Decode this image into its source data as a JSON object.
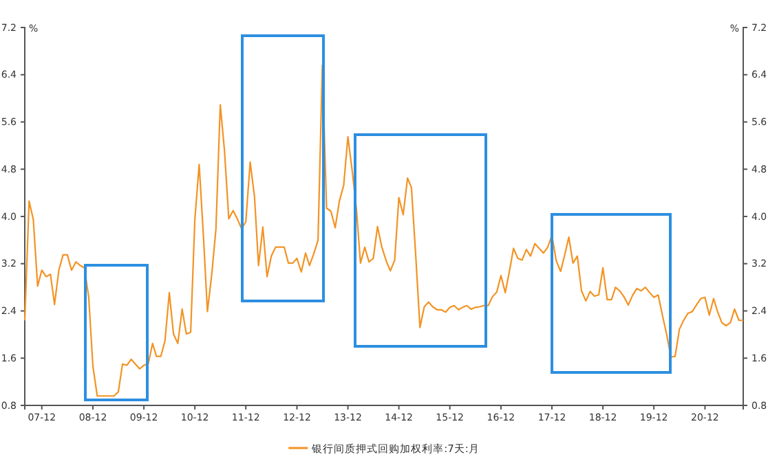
{
  "chart_data": {
    "type": "line",
    "ylabel": "%",
    "y2label": "%",
    "x": [
      "2007-08",
      "2007-09",
      "2007-10",
      "2007-11",
      "2007-12",
      "2008-01",
      "2008-02",
      "2008-03",
      "2008-04",
      "2008-05",
      "2008-06",
      "2008-07",
      "2008-08",
      "2008-09",
      "2008-10",
      "2008-11",
      "2008-12",
      "2009-01",
      "2009-02",
      "2009-03",
      "2009-04",
      "2009-05",
      "2009-06",
      "2009-07",
      "2009-08",
      "2009-09",
      "2009-10",
      "2009-11",
      "2009-12",
      "2010-01",
      "2010-02",
      "2010-03",
      "2010-04",
      "2010-05",
      "2010-06",
      "2010-07",
      "2010-08",
      "2010-09",
      "2010-10",
      "2010-11",
      "2010-12",
      "2011-01",
      "2011-02",
      "2011-03",
      "2011-04",
      "2011-05",
      "2011-06",
      "2011-07",
      "2011-08",
      "2011-09",
      "2011-10",
      "2011-11",
      "2011-12",
      "2012-01",
      "2012-02",
      "2012-03",
      "2012-04",
      "2012-05",
      "2012-06",
      "2012-07",
      "2012-08",
      "2012-09",
      "2012-10",
      "2012-11",
      "2012-12",
      "2013-01",
      "2013-02",
      "2013-03",
      "2013-04",
      "2013-05",
      "2013-06",
      "2013-07",
      "2013-08",
      "2013-09",
      "2013-10",
      "2013-11",
      "2013-12",
      "2014-01",
      "2014-02",
      "2014-03",
      "2014-04",
      "2014-05",
      "2014-06",
      "2014-07",
      "2014-08",
      "2014-09",
      "2014-10",
      "2014-11",
      "2014-12",
      "2015-01",
      "2015-02",
      "2015-03",
      "2015-04",
      "2015-05",
      "2015-06",
      "2015-07",
      "2015-08",
      "2015-09",
      "2015-10",
      "2015-11",
      "2015-12",
      "2016-01",
      "2016-02",
      "2016-03",
      "2016-04",
      "2016-05",
      "2016-06",
      "2016-07",
      "2016-08",
      "2016-09",
      "2016-10",
      "2016-11",
      "2016-12",
      "2017-01",
      "2017-02",
      "2017-03",
      "2017-04",
      "2017-05",
      "2017-06",
      "2017-07",
      "2017-08",
      "2017-09",
      "2017-10",
      "2017-11",
      "2017-12",
      "2018-01",
      "2018-02",
      "2018-03",
      "2018-04",
      "2018-05",
      "2018-06",
      "2018-07",
      "2018-08",
      "2018-09",
      "2018-10",
      "2018-11",
      "2018-12",
      "2019-01",
      "2019-02",
      "2019-03",
      "2019-04",
      "2019-05",
      "2019-06",
      "2019-07",
      "2019-08",
      "2019-09",
      "2019-10",
      "2019-11",
      "2019-12",
      "2020-01",
      "2020-02",
      "2020-03",
      "2020-04",
      "2020-05",
      "2020-06",
      "2020-07",
      "2020-08",
      "2020-09",
      "2020-10",
      "2020-11",
      "2020-12",
      "2021-01",
      "2021-02",
      "2021-03",
      "2021-04",
      "2021-05",
      "2021-06",
      "2021-07",
      "2021-08",
      "2021-09"
    ],
    "series": [
      {
        "name": "银行间质押式回购加权利率:7天:月",
        "color": "#f39323",
        "values": [
          2.24,
          4.26,
          3.95,
          2.82,
          3.09,
          2.98,
          3.02,
          2.51,
          3.09,
          3.35,
          3.35,
          3.09,
          3.23,
          3.17,
          3.13,
          2.63,
          1.46,
          0.96,
          0.96,
          0.96,
          0.96,
          0.96,
          1.03,
          1.5,
          1.48,
          1.58,
          1.5,
          1.42,
          1.48,
          1.5,
          1.85,
          1.63,
          1.63,
          1.89,
          2.71,
          2.01,
          1.85,
          2.43,
          2.01,
          2.04,
          3.95,
          4.88,
          3.64,
          2.39,
          3.02,
          3.79,
          5.89,
          5.12,
          3.96,
          4.1,
          3.96,
          3.79,
          3.91,
          4.92,
          4.34,
          3.17,
          3.82,
          2.98,
          3.33,
          3.48,
          3.48,
          3.48,
          3.21,
          3.21,
          3.29,
          3.06,
          3.38,
          3.17,
          3.37,
          3.6,
          6.56,
          4.14,
          4.09,
          3.81,
          4.26,
          4.53,
          5.35,
          4.77,
          4.1,
          3.21,
          3.48,
          3.23,
          3.29,
          3.83,
          3.48,
          3.25,
          3.08,
          3.26,
          4.32,
          4.03,
          4.65,
          4.49,
          3.33,
          2.12,
          2.47,
          2.55,
          2.47,
          2.42,
          2.42,
          2.38,
          2.46,
          2.49,
          2.42,
          2.46,
          2.49,
          2.43,
          2.46,
          2.47,
          2.49,
          2.49,
          2.64,
          2.72,
          3.0,
          2.71,
          3.09,
          3.46,
          3.29,
          3.26,
          3.44,
          3.33,
          3.54,
          3.46,
          3.38,
          3.48,
          3.68,
          3.25,
          3.07,
          3.33,
          3.65,
          3.21,
          3.33,
          2.74,
          2.57,
          2.73,
          2.65,
          2.67,
          3.13,
          2.59,
          2.59,
          2.8,
          2.74,
          2.64,
          2.5,
          2.66,
          2.78,
          2.74,
          2.8,
          2.71,
          2.63,
          2.67,
          2.32,
          2.01,
          1.62,
          1.63,
          2.09,
          2.24,
          2.36,
          2.39,
          2.5,
          2.61,
          2.63,
          2.33,
          2.61,
          2.39,
          2.2,
          2.15,
          2.2,
          2.43,
          2.24,
          2.24
        ]
      }
    ],
    "xlim": [
      "2007-08",
      "2021-09"
    ],
    "xticks": [
      {
        "value": "2007-12",
        "label": "07-12"
      },
      {
        "value": "2008-12",
        "label": "08-12"
      },
      {
        "value": "2009-12",
        "label": "09-12"
      },
      {
        "value": "2010-12",
        "label": "10-12"
      },
      {
        "value": "2011-12",
        "label": "11-12"
      },
      {
        "value": "2012-12",
        "label": "12-12"
      },
      {
        "value": "2013-12",
        "label": "13-12"
      },
      {
        "value": "2014-12",
        "label": "14-12"
      },
      {
        "value": "2015-12",
        "label": "15-12"
      },
      {
        "value": "2016-12",
        "label": "16-12"
      },
      {
        "value": "2017-12",
        "label": "17-12"
      },
      {
        "value": "2018-12",
        "label": "18-12"
      },
      {
        "value": "2019-12",
        "label": "19-12"
      },
      {
        "value": "2020-12",
        "label": "20-12"
      }
    ],
    "ylim": [
      0.8,
      7.2
    ],
    "yticks": [
      0.8,
      1.6,
      2.4,
      3.2,
      {
        "value": 4,
        "label": "4.0"
      },
      4.8,
      5.6,
      6.4,
      7.2
    ],
    "y2lim": [
      0.8,
      7.2
    ],
    "y2ticks": [
      0.8,
      1.6,
      2.4,
      3.2,
      {
        "value": 4,
        "label": "4.0"
      },
      4.8,
      5.6,
      6.4,
      7.2
    ],
    "legend": "bottom",
    "grid": false
  }
}
